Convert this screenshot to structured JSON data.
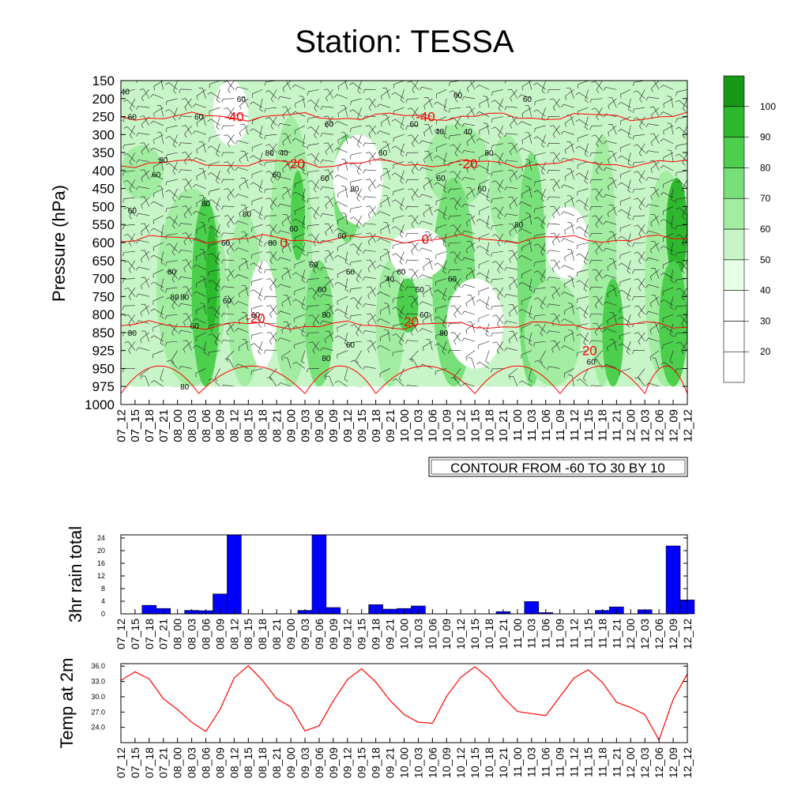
{
  "title": "Station: TESSA",
  "time_labels": [
    "07_12",
    "07_15",
    "07_18",
    "07_21",
    "08_00",
    "08_03",
    "08_06",
    "08_09",
    "08_12",
    "08_15",
    "08_18",
    "08_21",
    "09_00",
    "09_03",
    "09_06",
    "09_09",
    "09_12",
    "09_15",
    "09_18",
    "09_21",
    "10_00",
    "10_03",
    "10_06",
    "10_09",
    "10_12",
    "10_15",
    "10_18",
    "10_21",
    "11_00",
    "11_03",
    "11_06",
    "11_09",
    "11_12",
    "11_15",
    "11_18",
    "11_21",
    "12_00",
    "12_03",
    "12_06",
    "12_09",
    "12_12"
  ],
  "colors": {
    "temp_contour": "#ff0000",
    "rain_bar": "#0000ff",
    "temp_line": "#ff0000"
  },
  "chart_data": [
    {
      "type": "heatmap",
      "name": "cross_section",
      "ylabel": "Pressure (hPa)",
      "pressure_levels": [
        150,
        200,
        250,
        300,
        350,
        400,
        450,
        500,
        550,
        600,
        650,
        700,
        750,
        800,
        850,
        925,
        950,
        975,
        1000
      ],
      "contour_info": "CONTOUR FROM -60 TO 30 BY 10",
      "legend": {
        "label_values": [
          20,
          30,
          40,
          50,
          60,
          70,
          80,
          90,
          100
        ],
        "colors": [
          "#ffffff",
          "#ffffff",
          "#ffffff",
          "#e6ffe6",
          "#c8f5c8",
          "#a3eda3",
          "#78e078",
          "#4ccf4c",
          "#2eb82e",
          "#179917"
        ]
      },
      "temperature_contours": [
        {
          "label": "-40",
          "p": 250
        },
        {
          "label": "-20",
          "p": 380
        },
        {
          "label": "0",
          "p": 590
        },
        {
          "label": "20",
          "p": 830
        }
      ],
      "temp_contour_labels": [
        {
          "label": "-40",
          "t": 8,
          "p": 250
        },
        {
          "label": "-40",
          "t": 21.5,
          "p": 250
        },
        {
          "label": "-20",
          "t": 12.3,
          "p": 380
        },
        {
          "label": "-20",
          "t": 24.5,
          "p": 380
        },
        {
          "label": "0",
          "t": 11.5,
          "p": 600
        },
        {
          "label": "0",
          "t": 21.5,
          "p": 590
        },
        {
          "label": "-20",
          "t": 9.5,
          "p": 810
        },
        {
          "label": "20",
          "t": 20.5,
          "p": 820
        },
        {
          "label": "20",
          "t": 33.1,
          "p": 925
        }
      ],
      "rh_contour_labels": [
        {
          "label": "40",
          "t": 0.3,
          "p": 180
        },
        {
          "label": "60",
          "t": 0.8,
          "p": 250
        },
        {
          "label": "60",
          "t": 5.5,
          "p": 250
        },
        {
          "label": "60",
          "t": 8.5,
          "p": 200
        },
        {
          "label": "60",
          "t": 14.7,
          "p": 270
        },
        {
          "label": "60",
          "t": 20.7,
          "p": 270
        },
        {
          "label": "60",
          "t": 23.8,
          "p": 190
        },
        {
          "label": "60",
          "t": 28.7,
          "p": 200
        },
        {
          "label": "40",
          "t": 22.5,
          "p": 290
        },
        {
          "label": "40",
          "t": 24.5,
          "p": 290
        },
        {
          "label": "60",
          "t": 18.5,
          "p": 350
        },
        {
          "label": "80",
          "t": 3,
          "p": 370
        },
        {
          "label": "80",
          "t": 10.5,
          "p": 350
        },
        {
          "label": "80",
          "t": 26,
          "p": 350
        },
        {
          "label": "40",
          "t": 11.5,
          "p": 350
        },
        {
          "label": "60",
          "t": 11,
          "p": 410
        },
        {
          "label": "60",
          "t": 2.5,
          "p": 410
        },
        {
          "label": "60",
          "t": 14.4,
          "p": 420
        },
        {
          "label": "80",
          "t": 16.5,
          "p": 450
        },
        {
          "label": "60",
          "t": 22.6,
          "p": 420
        },
        {
          "label": "60",
          "t": 25.5,
          "p": 450
        },
        {
          "label": "80",
          "t": 6,
          "p": 490
        },
        {
          "label": "60",
          "t": 0.8,
          "p": 510
        },
        {
          "label": "80",
          "t": 8.9,
          "p": 520
        },
        {
          "label": "80",
          "t": 28.1,
          "p": 550
        },
        {
          "label": "60",
          "t": 12.2,
          "p": 560
        },
        {
          "label": "60",
          "t": 15.6,
          "p": 580
        },
        {
          "label": "60",
          "t": 7.4,
          "p": 600
        },
        {
          "label": "80",
          "t": 10.7,
          "p": 600
        },
        {
          "label": "60",
          "t": 13.6,
          "p": 660
        },
        {
          "label": "60",
          "t": 16.2,
          "p": 680
        },
        {
          "label": "60",
          "t": 19.8,
          "p": 680
        },
        {
          "label": "40",
          "t": 19,
          "p": 700
        },
        {
          "label": "80",
          "t": 3.6,
          "p": 680
        },
        {
          "label": "80",
          "t": 3.8,
          "p": 750
        },
        {
          "label": "80",
          "t": 4.5,
          "p": 750
        },
        {
          "label": "60",
          "t": 7.5,
          "p": 760
        },
        {
          "label": "80",
          "t": 14.2,
          "p": 730
        },
        {
          "label": "60",
          "t": 21.1,
          "p": 730
        },
        {
          "label": "60",
          "t": 23.4,
          "p": 700
        },
        {
          "label": "60",
          "t": 9.5,
          "p": 800
        },
        {
          "label": "80",
          "t": 14.5,
          "p": 800
        },
        {
          "label": "60",
          "t": 21.4,
          "p": 800
        },
        {
          "label": "60",
          "t": 5.2,
          "p": 830
        },
        {
          "label": "80",
          "t": 0.8,
          "p": 850
        },
        {
          "label": "80",
          "t": 22.8,
          "p": 850
        },
        {
          "label": "60",
          "t": 16.2,
          "p": 900
        },
        {
          "label": "80",
          "t": 14.5,
          "p": 935
        },
        {
          "label": "60",
          "t": 33.2,
          "p": 940
        },
        {
          "label": "80",
          "t": 4.5,
          "p": 975
        }
      ]
    },
    {
      "type": "bar",
      "name": "rain",
      "ylabel": "3hr rain total",
      "yticks": [
        0,
        4,
        8,
        12,
        16,
        20,
        24
      ],
      "ylim": [
        0,
        25
      ],
      "values": [
        0,
        2.7,
        1.7,
        0,
        1.1,
        1.0,
        6.3,
        25,
        0,
        0,
        0,
        0,
        1.1,
        25,
        2.0,
        0,
        0,
        2.9,
        1.5,
        1.7,
        2.5,
        0,
        0,
        0,
        0,
        0,
        0.7,
        0,
        3.9,
        0.4,
        0,
        0,
        0,
        1.1,
        2.2,
        0,
        1.3,
        0,
        21.5,
        4.4,
        0
      ]
    },
    {
      "type": "line",
      "name": "temp",
      "ylabel": "Temp at 2m",
      "yticks": [
        "24.0",
        "27.0",
        "30.0",
        "33.0",
        "36.0"
      ],
      "ylim": [
        21.0,
        36.5
      ],
      "values": [
        33.2,
        34.9,
        33.5,
        29.6,
        27.5,
        25.0,
        23.2,
        27.5,
        33.7,
        36.1,
        33.2,
        29.6,
        28.0,
        23.3,
        24.3,
        29.2,
        33.4,
        35.5,
        32.9,
        29.3,
        26.5,
        25.0,
        24.8,
        30.1,
        33.8,
        35.9,
        33.6,
        29.9,
        27.1,
        26.7,
        26.3,
        30.0,
        33.7,
        35.3,
        32.8,
        28.9,
        27.9,
        26.5,
        21.5,
        29.5,
        34.5
      ]
    }
  ]
}
